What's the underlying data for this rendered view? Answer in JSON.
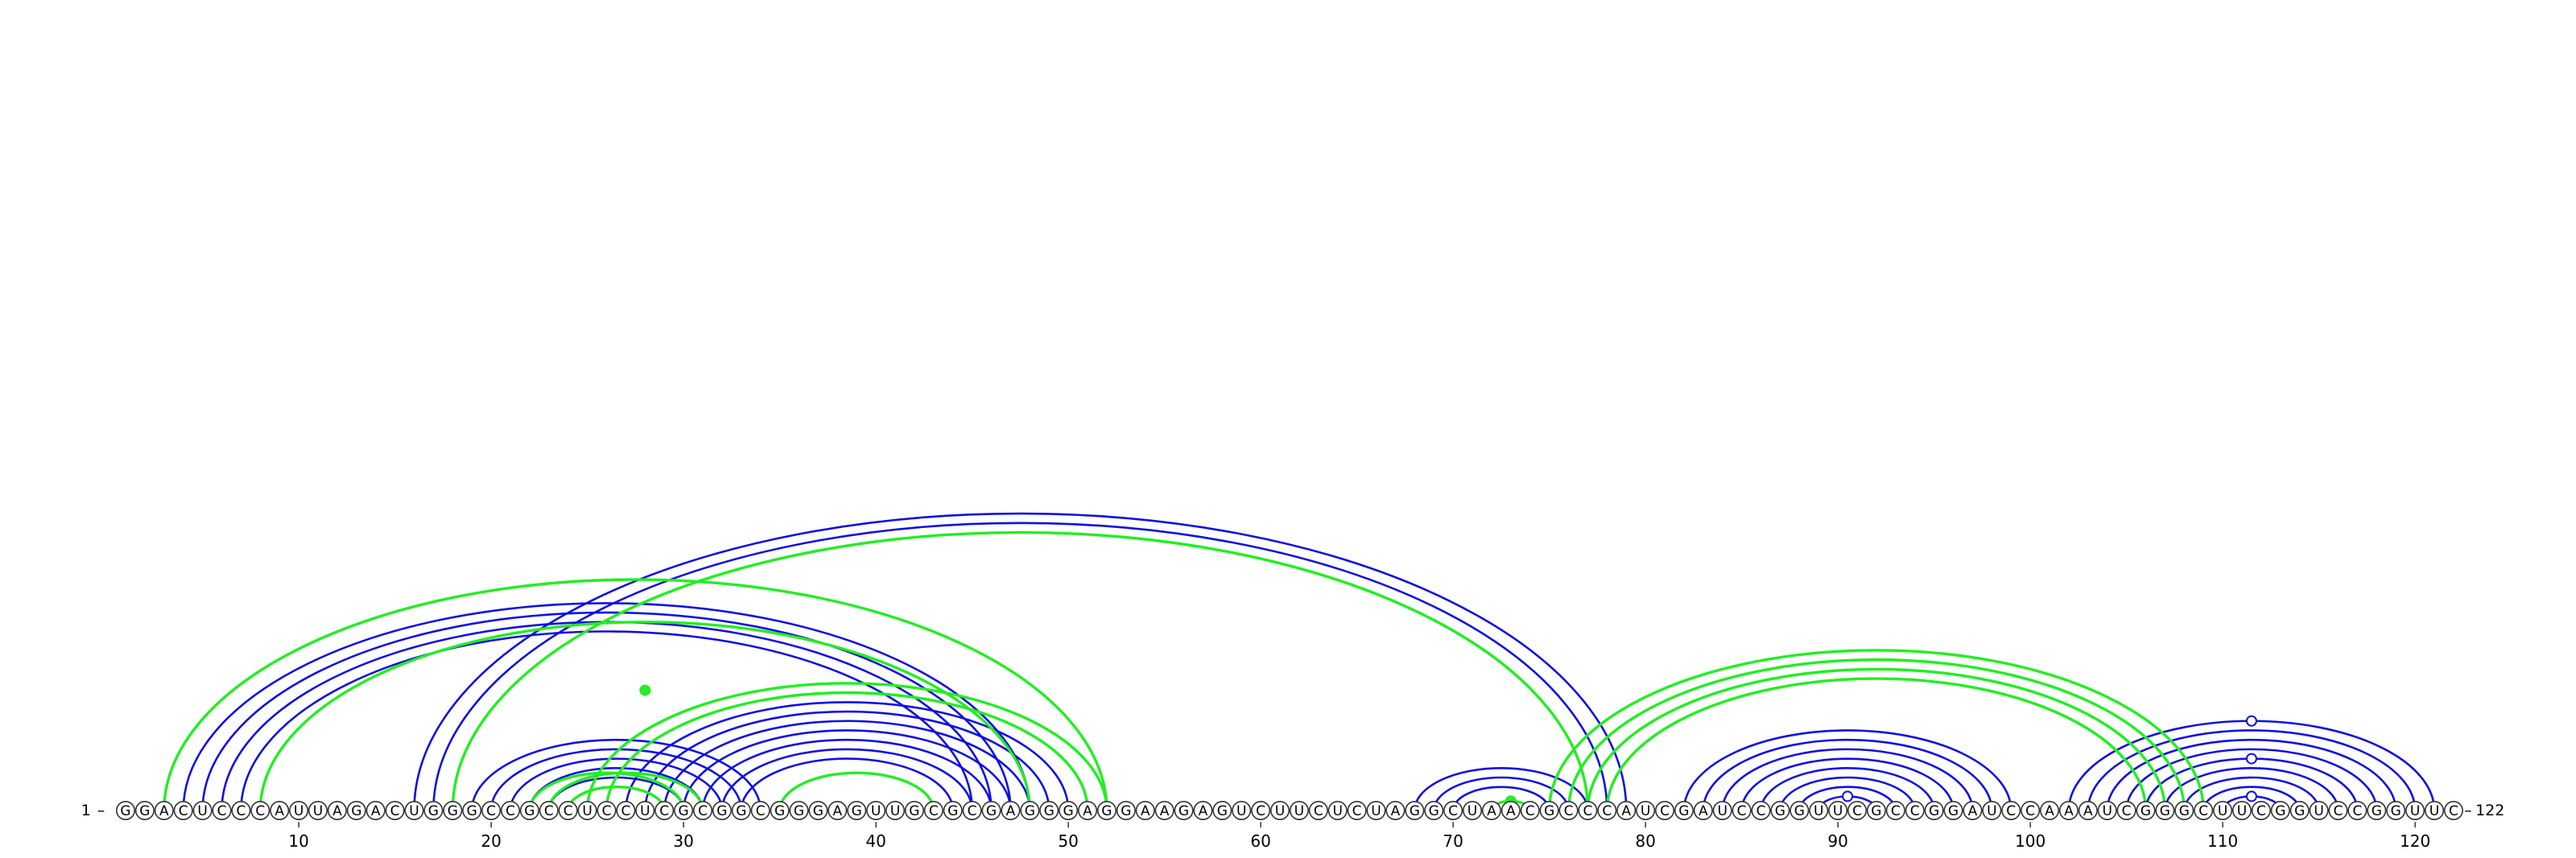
{
  "chart_data": {
    "type": "arc-diagram",
    "sequence": "GGACUCCCAUUAGACUGGGCCGCCUCCUCGCGGCGGGAGUUGCGCGAGGGAGGAAGAGUCUUCUCUAGGCUAACGCCCAUCGAUCCGGUUCGCCGGAUCCAAAUCGGGCUUCGGUCCGGUUC",
    "start_label": "1",
    "end_label": "122",
    "ticks": [
      10,
      20,
      30,
      40,
      50,
      60,
      70,
      80,
      90,
      100,
      110,
      120
    ],
    "colors": {
      "blue": "#1010e0",
      "green": "#22ee22"
    },
    "pairs": {
      "blue": [
        [
          4,
          48
        ],
        [
          5,
          47
        ],
        [
          6,
          46
        ],
        [
          7,
          45
        ],
        [
          16,
          79
        ],
        [
          17,
          78
        ],
        [
          19,
          34
        ],
        [
          20,
          33
        ],
        [
          21,
          32
        ],
        [
          22,
          31
        ],
        [
          23,
          30
        ],
        [
          27,
          50
        ],
        [
          28,
          49
        ],
        [
          29,
          48
        ],
        [
          30,
          47
        ],
        [
          31,
          46
        ],
        [
          32,
          45
        ],
        [
          33,
          44
        ],
        [
          68,
          77
        ],
        [
          69,
          76
        ],
        [
          70,
          75
        ],
        [
          82,
          99
        ],
        [
          83,
          98
        ],
        [
          84,
          97
        ],
        [
          85,
          96
        ],
        [
          86,
          95
        ],
        [
          87,
          94
        ],
        [
          88,
          93
        ],
        [
          89,
          92
        ],
        [
          102,
          121
        ],
        [
          103,
          120
        ],
        [
          104,
          119
        ],
        [
          105,
          118
        ],
        [
          106,
          117
        ],
        [
          107,
          116
        ],
        [
          108,
          115
        ],
        [
          109,
          114
        ],
        [
          110,
          113
        ]
      ],
      "green": [
        [
          3,
          52
        ],
        [
          8,
          48
        ],
        [
          18,
          77
        ],
        [
          22,
          30
        ],
        [
          23,
          31
        ],
        [
          24,
          29
        ],
        [
          25,
          52
        ],
        [
          26,
          51
        ],
        [
          35,
          43
        ],
        [
          72,
          74
        ],
        [
          75,
          109
        ],
        [
          76,
          108
        ],
        [
          77,
          107
        ],
        [
          78,
          106
        ]
      ]
    },
    "markers": [
      {
        "color": "green",
        "position": 28.0,
        "height": 0.38,
        "filled": true
      },
      {
        "color": "green",
        "position": 73.0,
        "height": 0.0,
        "filled": true
      },
      {
        "color": "blue",
        "position": 90.5,
        "height": 0.0,
        "filled": false
      },
      {
        "color": "blue",
        "position": 111.5,
        "height": 0.0,
        "filled": false
      },
      {
        "color": "blue",
        "position": 111.5,
        "height": 0.5,
        "filled": false
      },
      {
        "color": "blue",
        "position": 111.5,
        "height": 1.0,
        "filled": false
      }
    ]
  }
}
